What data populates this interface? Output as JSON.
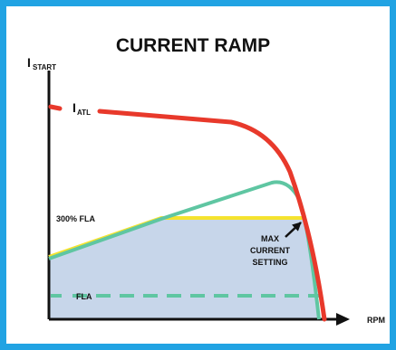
{
  "diagram": {
    "title": "CURRENT RAMP",
    "y_axis_label": {
      "main": "I",
      "sub": "START"
    },
    "x_axis_label": "RPM",
    "atl_label": {
      "main": "I",
      "sub": "ATL"
    },
    "labels": {
      "fla_300": "300% FLA",
      "fla": "FLA",
      "max_current_line1": "MAX",
      "max_current_line2": "CURRENT",
      "max_current_line3": "SETTING"
    },
    "colors": {
      "frame": "#21a3e3",
      "atl_curve": "#e8392b",
      "ramp_curve": "#5fc6a2",
      "max_setting_line": "#f5e32e",
      "fla_line": "#5fc6a2",
      "fill_area": "#c7d6ea"
    }
  }
}
